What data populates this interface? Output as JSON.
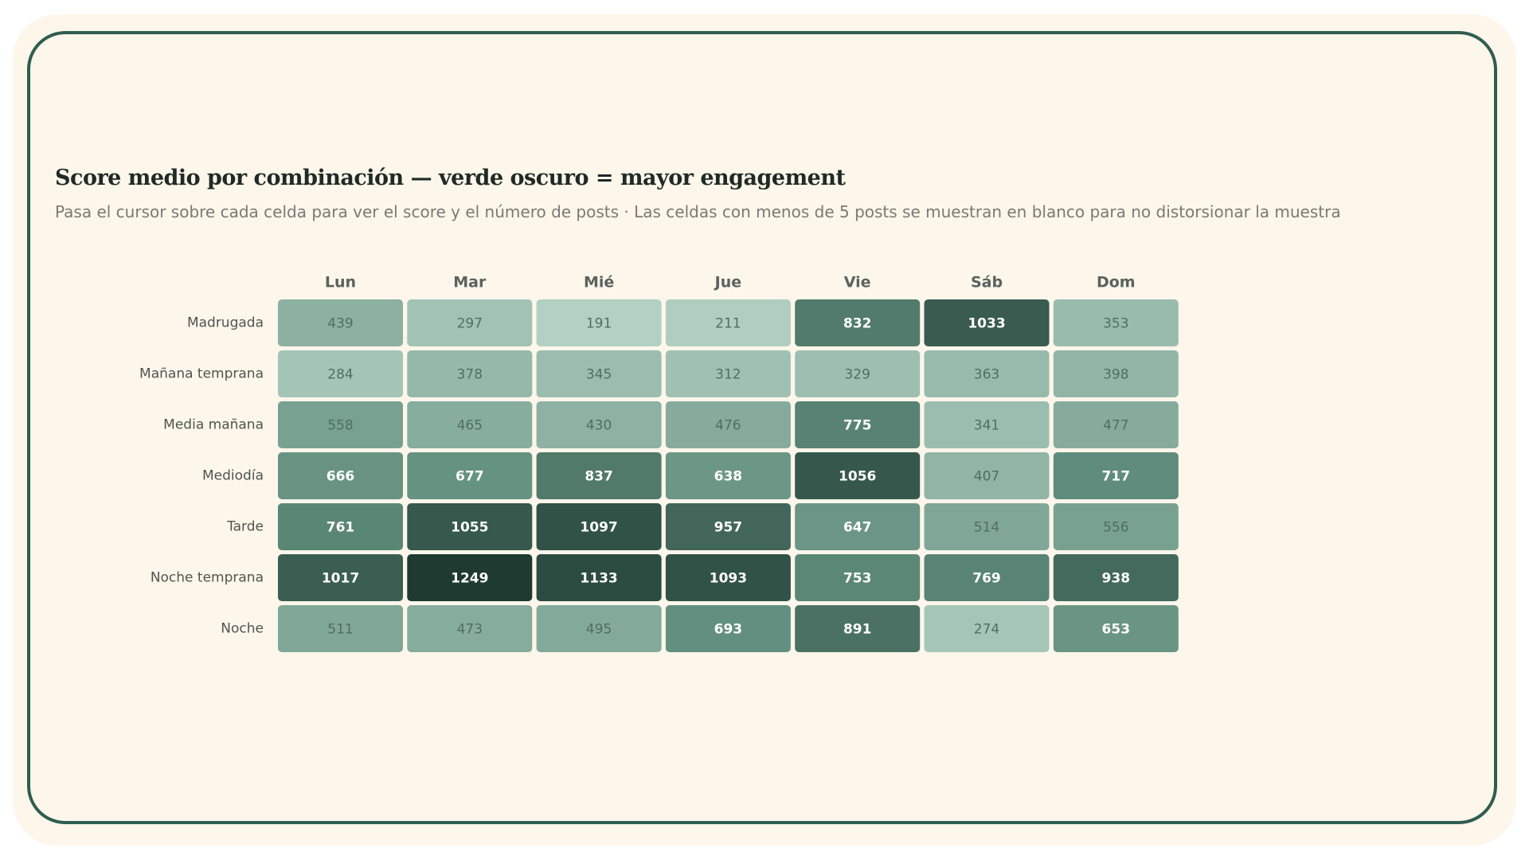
{
  "chart_data": {
    "type": "heatmap",
    "title": "Score medio por combinación — verde oscuro = mayor engagement",
    "subtitle": "Pasa el cursor sobre cada celda para ver el score y el número de posts · Las celdas con menos de 5 posts se muestran en blanco para no distorsionar la muestra",
    "x_categories": [
      "Lun",
      "Mar",
      "Mié",
      "Jue",
      "Vie",
      "Sáb",
      "Dom"
    ],
    "y_categories": [
      "Madrugada",
      "Mañana temprana",
      "Media mañana",
      "Mediodía",
      "Tarde",
      "Noche temprana",
      "Noche"
    ],
    "values": [
      [
        439,
        297,
        191,
        211,
        832,
        1033,
        353
      ],
      [
        284,
        378,
        345,
        312,
        329,
        363,
        398
      ],
      [
        558,
        465,
        430,
        476,
        775,
        341,
        477
      ],
      [
        666,
        677,
        837,
        638,
        1056,
        407,
        717
      ],
      [
        761,
        1055,
        1097,
        957,
        647,
        514,
        556
      ],
      [
        1017,
        1249,
        1133,
        1093,
        753,
        769,
        938
      ],
      [
        511,
        473,
        495,
        693,
        891,
        274,
        653
      ]
    ],
    "colors": [
      "#b3d0c4",
      "#5f8c7c",
      "#1e3a31"
    ]
  }
}
